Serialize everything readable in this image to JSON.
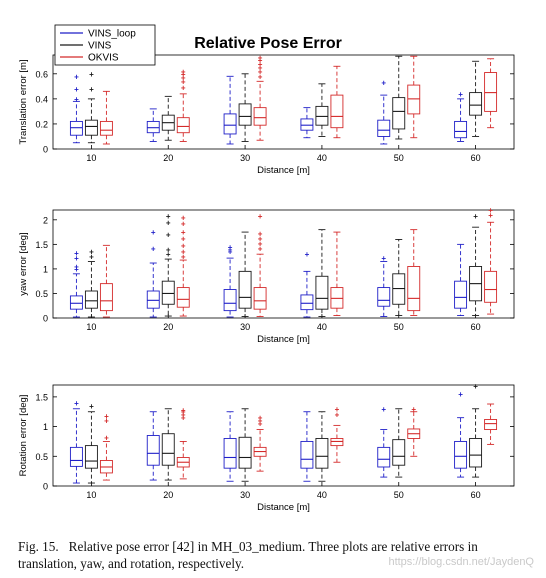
{
  "figure": {
    "title": "Relative Pose Error",
    "legend": [
      {
        "name": "VINS_loop",
        "color": "#1f1fc8"
      },
      {
        "name": "VINS",
        "color": "#1a1a1a"
      },
      {
        "name": "OKVIS",
        "color": "#d42a2a"
      }
    ],
    "caption_label": "Fig. 15.",
    "caption_text": "Relative pose error [42] in MH_03_medium. Three plots are relative errors in translation, yaw, and rotation, respectively.",
    "watermark": "https://blog.csdn.net/JaydenQ"
  },
  "chart_data": [
    {
      "type": "box",
      "title": "Relative Pose Error",
      "xlabel": "Distance [m]",
      "ylabel": "Translation error [m]",
      "categories": [
        "10",
        "20",
        "30",
        "40",
        "50",
        "60"
      ],
      "ylim": [
        0,
        0.75
      ],
      "yticks": [
        "0",
        "0.2",
        "0.4",
        "0.6"
      ],
      "legend_position": "top-left",
      "grid": false,
      "series": [
        {
          "name": "VINS_loop",
          "boxes": [
            {
              "wlo": 0.05,
              "q1": 0.11,
              "med": 0.17,
              "q3": 0.22,
              "whi": 0.38,
              "outliers": [
                0.4,
                0.48,
                0.58
              ]
            },
            {
              "wlo": 0.06,
              "q1": 0.13,
              "med": 0.17,
              "q3": 0.22,
              "whi": 0.32,
              "outliers": []
            },
            {
              "wlo": 0.04,
              "q1": 0.12,
              "med": 0.19,
              "q3": 0.28,
              "whi": 0.58,
              "outliers": []
            },
            {
              "wlo": 0.09,
              "q1": 0.15,
              "med": 0.19,
              "q3": 0.24,
              "whi": 0.33,
              "outliers": []
            },
            {
              "wlo": 0.04,
              "q1": 0.1,
              "med": 0.15,
              "q3": 0.23,
              "whi": 0.43,
              "outliers": [
                0.53
              ]
            },
            {
              "wlo": 0.06,
              "q1": 0.09,
              "med": 0.14,
              "q3": 0.22,
              "whi": 0.4,
              "outliers": [
                0.44
              ]
            }
          ]
        },
        {
          "name": "VINS",
          "boxes": [
            {
              "wlo": 0.05,
              "q1": 0.11,
              "med": 0.18,
              "q3": 0.23,
              "whi": 0.4,
              "outliers": [
                0.48,
                0.6
              ]
            },
            {
              "wlo": 0.07,
              "q1": 0.15,
              "med": 0.21,
              "q3": 0.27,
              "whi": 0.42,
              "outliers": []
            },
            {
              "wlo": 0.06,
              "q1": 0.19,
              "med": 0.26,
              "q3": 0.36,
              "whi": 0.6,
              "outliers": []
            },
            {
              "wlo": 0.1,
              "q1": 0.19,
              "med": 0.26,
              "q3": 0.34,
              "whi": 0.52,
              "outliers": []
            },
            {
              "wlo": 0.08,
              "q1": 0.16,
              "med": 0.3,
              "q3": 0.41,
              "whi": 0.74,
              "outliers": []
            },
            {
              "wlo": 0.1,
              "q1": 0.27,
              "med": 0.35,
              "q3": 0.45,
              "whi": 0.7,
              "outliers": []
            }
          ]
        },
        {
          "name": "OKVIS",
          "boxes": [
            {
              "wlo": 0.04,
              "q1": 0.11,
              "med": 0.15,
              "q3": 0.22,
              "whi": 0.46,
              "outliers": []
            },
            {
              "wlo": 0.06,
              "q1": 0.13,
              "med": 0.18,
              "q3": 0.25,
              "whi": 0.44,
              "outliers": [
                0.49,
                0.54,
                0.57,
                0.6,
                0.62
              ]
            },
            {
              "wlo": 0.07,
              "q1": 0.19,
              "med": 0.25,
              "q3": 0.33,
              "whi": 0.54,
              "outliers": [
                0.58,
                0.62,
                0.65,
                0.68,
                0.71,
                0.73
              ]
            },
            {
              "wlo": 0.09,
              "q1": 0.17,
              "med": 0.26,
              "q3": 0.43,
              "whi": 0.66,
              "outliers": []
            },
            {
              "wlo": 0.09,
              "q1": 0.28,
              "med": 0.4,
              "q3": 0.51,
              "whi": 0.74,
              "outliers": []
            },
            {
              "wlo": 0.17,
              "q1": 0.3,
              "med": 0.45,
              "q3": 0.61,
              "whi": 0.72,
              "outliers": []
            }
          ]
        }
      ]
    },
    {
      "type": "box",
      "xlabel": "Distance [m]",
      "ylabel": "yaw error [deg]",
      "categories": [
        "10",
        "20",
        "30",
        "40",
        "50",
        "60"
      ],
      "ylim": [
        0,
        2.2
      ],
      "yticks": [
        "0",
        "0.5",
        "1",
        "1.5",
        "2"
      ],
      "grid": false,
      "series": [
        {
          "name": "VINS_loop",
          "boxes": [
            {
              "wlo": 0.02,
              "q1": 0.18,
              "med": 0.3,
              "q3": 0.45,
              "whi": 0.9,
              "outliers": [
                1.0,
                1.05,
                1.22,
                1.32
              ]
            },
            {
              "wlo": 0.02,
              "q1": 0.2,
              "med": 0.36,
              "q3": 0.55,
              "whi": 1.12,
              "outliers": [
                1.42,
                1.75
              ]
            },
            {
              "wlo": 0.02,
              "q1": 0.15,
              "med": 0.3,
              "q3": 0.58,
              "whi": 1.22,
              "outliers": [
                1.35,
                1.4,
                1.45
              ]
            },
            {
              "wlo": 0.02,
              "q1": 0.17,
              "med": 0.3,
              "q3": 0.47,
              "whi": 0.95,
              "outliers": [
                1.3
              ]
            },
            {
              "wlo": 0.03,
              "q1": 0.24,
              "med": 0.36,
              "q3": 0.62,
              "whi": 1.15,
              "outliers": [
                1.22
              ]
            },
            {
              "wlo": 0.05,
              "q1": 0.2,
              "med": 0.42,
              "q3": 0.75,
              "whi": 1.5,
              "outliers": []
            }
          ]
        },
        {
          "name": "VINS",
          "boxes": [
            {
              "wlo": 0.02,
              "q1": 0.2,
              "med": 0.35,
              "q3": 0.55,
              "whi": 1.15,
              "outliers": [
                1.25,
                1.35
              ]
            },
            {
              "wlo": 0.04,
              "q1": 0.28,
              "med": 0.5,
              "q3": 0.75,
              "whi": 1.2,
              "outliers": [
                1.3,
                1.4,
                1.7,
                1.95,
                2.08
              ]
            },
            {
              "wlo": 0.03,
              "q1": 0.2,
              "med": 0.42,
              "q3": 0.95,
              "whi": 1.75,
              "outliers": []
            },
            {
              "wlo": 0.03,
              "q1": 0.18,
              "med": 0.4,
              "q3": 0.85,
              "whi": 1.8,
              "outliers": []
            },
            {
              "wlo": 0.05,
              "q1": 0.28,
              "med": 0.6,
              "q3": 0.9,
              "whi": 1.6,
              "outliers": []
            },
            {
              "wlo": 0.05,
              "q1": 0.35,
              "med": 0.7,
              "q3": 1.05,
              "whi": 1.85,
              "outliers": [
                2.08
              ]
            }
          ]
        },
        {
          "name": "OKVIS",
          "boxes": [
            {
              "wlo": 0.02,
              "q1": 0.15,
              "med": 0.35,
              "q3": 0.7,
              "whi": 1.48,
              "outliers": []
            },
            {
              "wlo": 0.04,
              "q1": 0.22,
              "med": 0.38,
              "q3": 0.62,
              "whi": 1.18,
              "outliers": [
                1.25,
                1.35,
                1.48,
                1.62,
                1.75,
                1.92,
                2.05
              ]
            },
            {
              "wlo": 0.03,
              "q1": 0.18,
              "med": 0.35,
              "q3": 0.62,
              "whi": 1.3,
              "outliers": [
                1.42,
                1.52,
                1.62,
                1.72,
                2.08
              ]
            },
            {
              "wlo": 0.05,
              "q1": 0.2,
              "med": 0.4,
              "q3": 0.62,
              "whi": 1.75,
              "outliers": []
            },
            {
              "wlo": 0.05,
              "q1": 0.15,
              "med": 0.4,
              "q3": 1.05,
              "whi": 1.8,
              "outliers": []
            },
            {
              "wlo": 0.08,
              "q1": 0.32,
              "med": 0.58,
              "q3": 0.95,
              "whi": 1.95,
              "outliers": [
                2.1,
                2.2
              ]
            }
          ]
        }
      ]
    },
    {
      "type": "box",
      "xlabel": "Distance [m]",
      "ylabel": "Rotation error [deg]",
      "categories": [
        "10",
        "20",
        "30",
        "40",
        "50",
        "60"
      ],
      "ylim": [
        0,
        1.7
      ],
      "yticks": [
        "0",
        "0.5",
        "1",
        "1.5"
      ],
      "grid": false,
      "series": [
        {
          "name": "VINS_loop",
          "boxes": [
            {
              "wlo": 0.05,
              "q1": 0.33,
              "med": 0.43,
              "q3": 0.65,
              "whi": 1.3,
              "outliers": [
                1.4
              ]
            },
            {
              "wlo": 0.1,
              "q1": 0.35,
              "med": 0.55,
              "q3": 0.85,
              "whi": 1.25,
              "outliers": []
            },
            {
              "wlo": 0.08,
              "q1": 0.3,
              "med": 0.48,
              "q3": 0.8,
              "whi": 1.25,
              "outliers": []
            },
            {
              "wlo": 0.08,
              "q1": 0.3,
              "med": 0.45,
              "q3": 0.75,
              "whi": 1.25,
              "outliers": []
            },
            {
              "wlo": 0.15,
              "q1": 0.32,
              "med": 0.45,
              "q3": 0.65,
              "whi": 0.95,
              "outliers": [
                1.3
              ]
            },
            {
              "wlo": 0.15,
              "q1": 0.3,
              "med": 0.5,
              "q3": 0.75,
              "whi": 1.15,
              "outliers": [
                1.55
              ]
            }
          ]
        },
        {
          "name": "VINS",
          "boxes": [
            {
              "wlo": 0.05,
              "q1": 0.3,
              "med": 0.42,
              "q3": 0.68,
              "whi": 1.25,
              "outliers": [
                1.35
              ]
            },
            {
              "wlo": 0.1,
              "q1": 0.35,
              "med": 0.55,
              "q3": 0.88,
              "whi": 1.3,
              "outliers": []
            },
            {
              "wlo": 0.08,
              "q1": 0.3,
              "med": 0.48,
              "q3": 0.82,
              "whi": 1.3,
              "outliers": []
            },
            {
              "wlo": 0.08,
              "q1": 0.3,
              "med": 0.5,
              "q3": 0.8,
              "whi": 1.25,
              "outliers": []
            },
            {
              "wlo": 0.15,
              "q1": 0.35,
              "med": 0.5,
              "q3": 0.78,
              "whi": 1.3,
              "outliers": []
            },
            {
              "wlo": 0.15,
              "q1": 0.32,
              "med": 0.52,
              "q3": 0.8,
              "whi": 1.3,
              "outliers": [
                1.68
              ]
            }
          ]
        },
        {
          "name": "OKVIS",
          "boxes": [
            {
              "wlo": 0.1,
              "q1": 0.22,
              "med": 0.32,
              "q3": 0.43,
              "whi": 0.75,
              "outliers": [
                0.82,
                1.1,
                1.18
              ]
            },
            {
              "wlo": 0.12,
              "q1": 0.32,
              "med": 0.4,
              "q3": 0.48,
              "whi": 0.75,
              "outliers": [
                1.15,
                1.2,
                1.25,
                1.28
              ]
            },
            {
              "wlo": 0.25,
              "q1": 0.5,
              "med": 0.58,
              "q3": 0.65,
              "whi": 0.95,
              "outliers": [
                1.05,
                1.1,
                1.15
              ]
            },
            {
              "wlo": 0.4,
              "q1": 0.68,
              "med": 0.75,
              "q3": 0.8,
              "whi": 1.02,
              "outliers": [
                1.2,
                1.3
              ]
            },
            {
              "wlo": 0.5,
              "q1": 0.8,
              "med": 0.88,
              "q3": 0.96,
              "whi": 1.25,
              "outliers": [
                1.3
              ]
            },
            {
              "wlo": 0.7,
              "q1": 0.95,
              "med": 1.05,
              "q3": 1.12,
              "whi": 1.38,
              "outliers": []
            }
          ]
        }
      ]
    }
  ]
}
